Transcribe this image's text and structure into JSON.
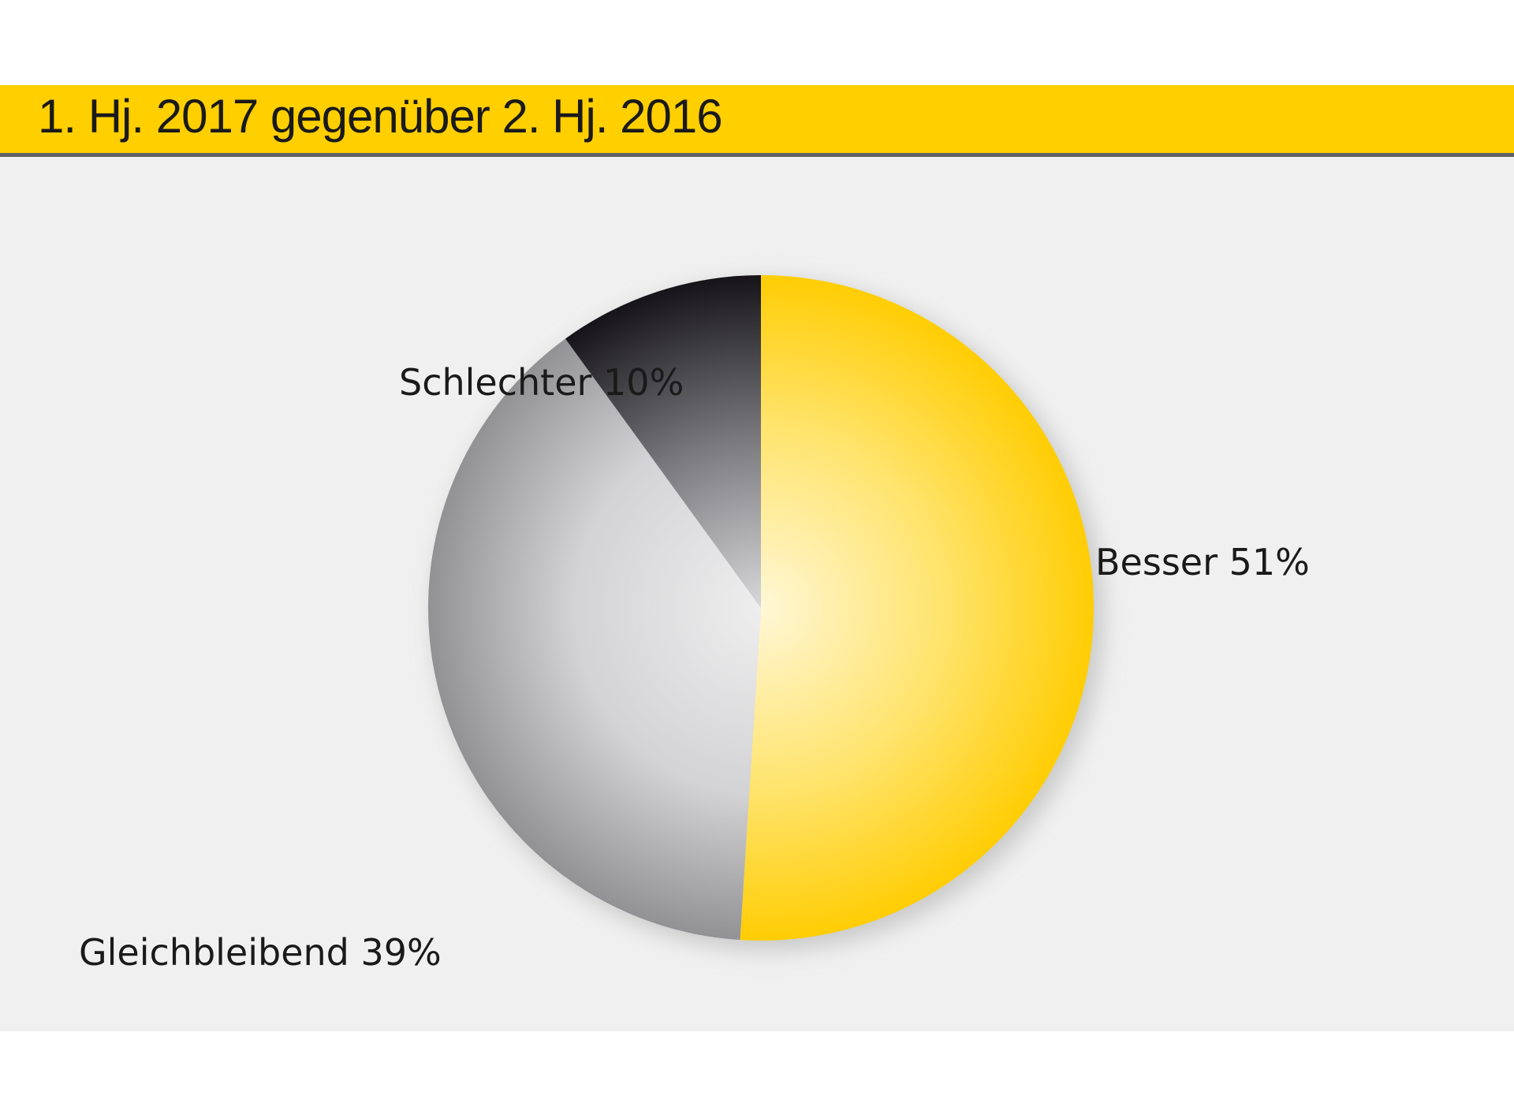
{
  "title": "1. Hj. 2017 gegenüber 2. Hj. 2016",
  "chart_data": {
    "type": "pie",
    "title": "1. Hj. 2017 gegenüber 2. Hj. 2016",
    "slices": [
      {
        "label": "Besser 51%",
        "name": "Besser",
        "value": 51,
        "color": "#ffcf00"
      },
      {
        "label": "Gleichbleibend 39%",
        "name": "Gleichbleibend",
        "value": 39,
        "color": "#9a9a9c"
      },
      {
        "label": "Schlechter 10%",
        "name": "Schlechter",
        "value": 10,
        "color": "#1c1a1f"
      }
    ],
    "start_angle": "12 o'clock",
    "direction": "clockwise"
  }
}
